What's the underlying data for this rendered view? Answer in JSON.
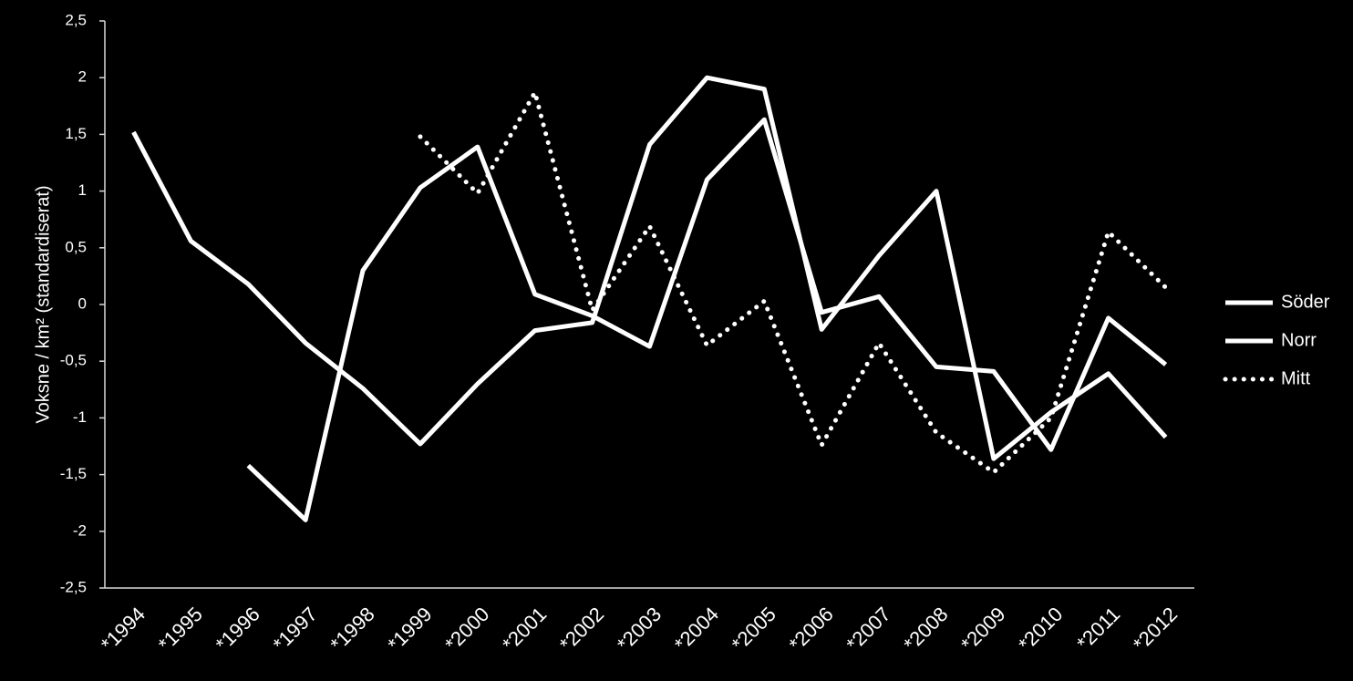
{
  "chart_data": {
    "type": "line",
    "y_label": "Voksne / km² (standardiserat)",
    "categories": [
      "*1994",
      "*1995",
      "*1996",
      "*1997",
      "*1998",
      "*1999",
      "*2000",
      "*2001",
      "*2002",
      "*2003",
      "*2004",
      "*2005",
      "*2006",
      "*2007",
      "*2008",
      "*2009",
      "*2010",
      "*2011",
      "*2012"
    ],
    "series": [
      {
        "name": "Söder",
        "color": "#ffffff",
        "line_style": "solid",
        "values": [
          1.52,
          0.56,
          0.18,
          -0.34,
          -0.74,
          -1.23,
          -0.7,
          -0.23,
          -0.16,
          1.41,
          2.0,
          1.9,
          -0.22,
          0.43,
          1.0,
          -1.36,
          -0.95,
          -0.61,
          -1.17
        ]
      },
      {
        "name": "Norr",
        "color": "#ffffff",
        "line_style": "solid",
        "values": [
          null,
          null,
          -1.42,
          -1.9,
          0.3,
          1.03,
          1.39,
          0.09,
          -0.1,
          -0.37,
          1.1,
          1.63,
          -0.07,
          0.07,
          -0.55,
          -0.59,
          -1.28,
          -0.12,
          -0.53
        ]
      },
      {
        "name": "Mitt",
        "color": "#ffffff",
        "line_style": "dotted",
        "values": [
          null,
          null,
          null,
          null,
          null,
          1.48,
          0.98,
          1.87,
          -0.05,
          0.69,
          -0.36,
          0.03,
          -1.24,
          -0.34,
          -1.13,
          -1.48,
          -1.0,
          0.64,
          0.15
        ]
      }
    ],
    "ylim": [
      -2.5,
      2.5
    ],
    "yticks": [
      {
        "value": -2.5,
        "label": "-2,5"
      },
      -2,
      {
        "value": -1.5,
        "label": "-1,5"
      },
      -1,
      {
        "value": -0.5,
        "label": "-0,5"
      },
      0,
      {
        "value": 0.5,
        "label": "0,5"
      },
      1,
      {
        "value": 1.5,
        "label": "1,5"
      },
      2,
      {
        "value": 2.5,
        "label": "2,5"
      }
    ],
    "grid": false,
    "legend": "right"
  }
}
